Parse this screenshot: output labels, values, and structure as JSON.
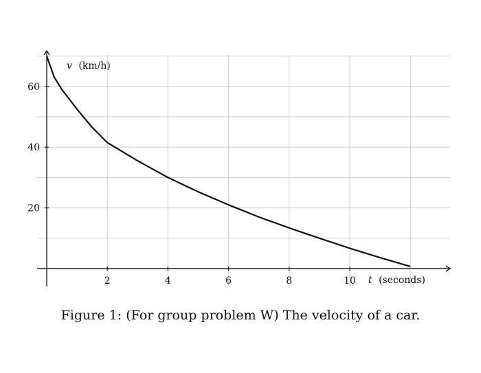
{
  "caption": "Figure 1: (For group problem W) The velocity of a car.",
  "chart_data": {
    "type": "line",
    "xlabel_var": "t",
    "xlabel_unit": "(seconds)",
    "ylabel_var": "v",
    "ylabel_unit": "(km/h)",
    "xlim": [
      0,
      13.3
    ],
    "ylim": [
      0,
      70
    ],
    "x_ticks": [
      2,
      4,
      6,
      8,
      10
    ],
    "y_ticks": [
      20,
      40,
      60
    ],
    "x_grid": [
      2,
      4,
      6,
      8,
      10,
      12
    ],
    "y_grid": [
      10,
      20,
      30,
      40,
      50,
      60,
      70
    ],
    "grid": true,
    "series": [
      {
        "x": [
          0,
          0.25,
          0.5,
          1,
          1.5,
          2,
          3,
          4,
          5,
          6,
          7,
          8,
          9,
          10,
          11,
          12
        ],
        "y": [
          70,
          63,
          59,
          52.5,
          46.5,
          41.5,
          35.5,
          30,
          25.3,
          21,
          17,
          13.4,
          10,
          6.7,
          3.6,
          0.7
        ]
      }
    ]
  }
}
